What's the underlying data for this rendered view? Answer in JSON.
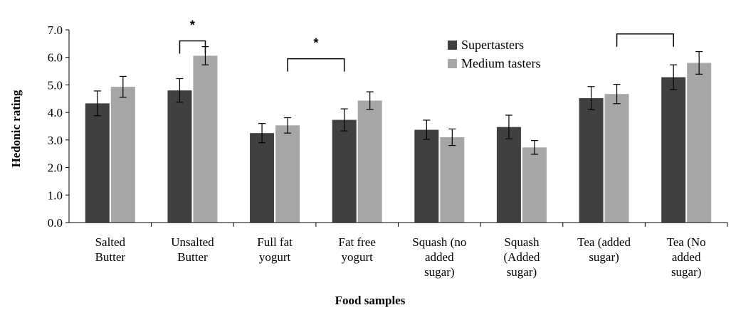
{
  "chart_data": {
    "type": "bar",
    "title": "",
    "xlabel": "Food samples",
    "ylabel": "Hedonic rating",
    "ylim": [
      0,
      7
    ],
    "yticks": [
      "0.0",
      "1.0",
      "2.0",
      "3.0",
      "4.0",
      "5.0",
      "6.0",
      "7.0"
    ],
    "categories": [
      [
        "Salted",
        "Butter"
      ],
      [
        "Unsalted",
        "Butter"
      ],
      [
        "Full fat",
        "yogurt"
      ],
      [
        "Fat free",
        "yogurt"
      ],
      [
        "Squash (no",
        "added",
        "sugar)"
      ],
      [
        "Squash",
        "(Added",
        "sugar)"
      ],
      [
        "Tea (added",
        "sugar)"
      ],
      [
        "Tea (No",
        "added",
        "sugar)"
      ]
    ],
    "series": [
      {
        "name": "Supertasters",
        "color": "#404040",
        "values": [
          4.33,
          4.8,
          3.25,
          3.73,
          3.37,
          3.47,
          4.52,
          5.28
        ],
        "errors": [
          0.45,
          0.43,
          0.35,
          0.4,
          0.35,
          0.43,
          0.42,
          0.45
        ]
      },
      {
        "name": "Medium tasters",
        "color": "#a6a6a6",
        "values": [
          4.93,
          6.06,
          3.53,
          4.43,
          3.1,
          2.73,
          4.67,
          5.8
        ],
        "errors": [
          0.38,
          0.33,
          0.28,
          0.32,
          0.3,
          0.25,
          0.35,
          0.41
        ]
      }
    ],
    "legend_position": "top-right",
    "grid": false,
    "annotations": [
      {
        "text": "*",
        "bracket_from": 1,
        "bracket_to": 1,
        "within_category": true,
        "bracket_y": 6.6
      },
      {
        "text": "*",
        "bracket_from": 2,
        "bracket_to": 3,
        "within_category": false,
        "bracket_y": 5.95
      },
      {
        "text": "",
        "bracket_from": 6,
        "bracket_to": 7,
        "within_category": false,
        "bracket_y": 6.85
      }
    ]
  }
}
